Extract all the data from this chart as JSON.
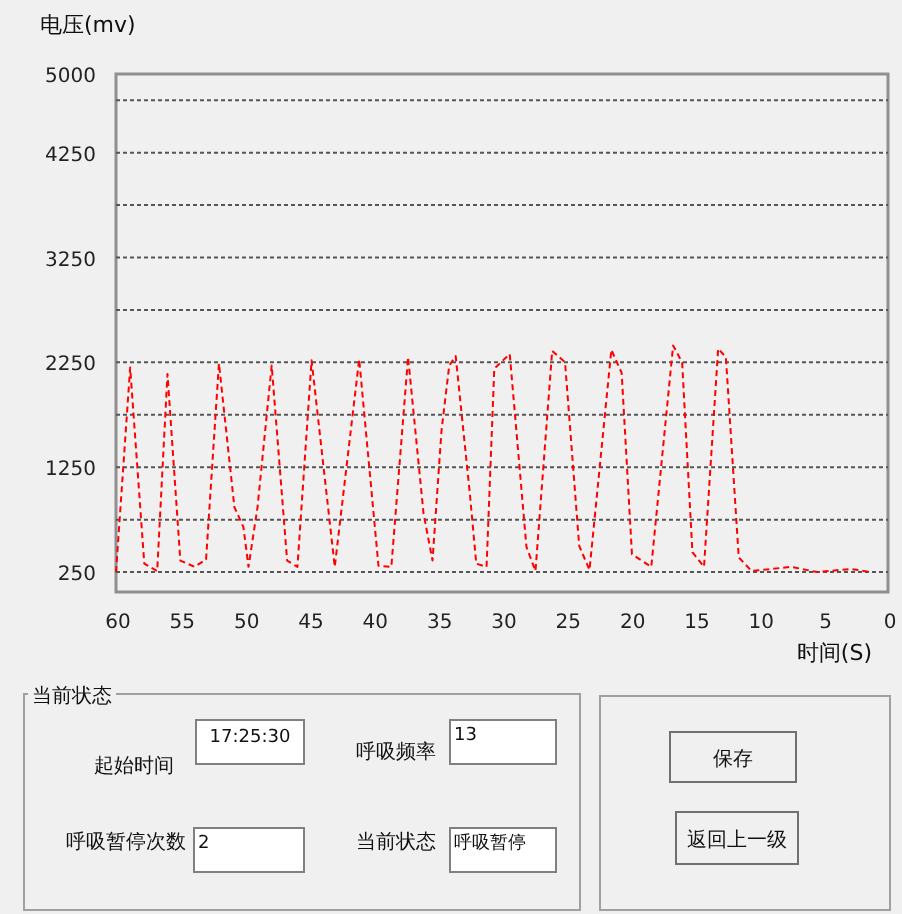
{
  "chart_data": {
    "type": "line",
    "xlabel": "时间(S)",
    "ylabel": "电压(mv)",
    "xlim": [
      60,
      0
    ],
    "ylim": [
      60,
      5000
    ],
    "xticks": [
      60,
      55,
      50,
      45,
      40,
      35,
      30,
      25,
      20,
      15,
      10,
      5,
      0
    ],
    "yticks": [
      250,
      {
        "value": 750,
        "label": null
      },
      1250,
      {
        "value": 1750,
        "label": null
      },
      2250,
      {
        "value": 2750,
        "label": null
      },
      3250,
      {
        "value": 3750,
        "label": null
      },
      4250,
      {
        "value": 4750,
        "label": null
      },
      5000
    ],
    "grid": "y",
    "line_style": "dashed",
    "series": [
      {
        "color": "#ff0000",
        "x": [
          60,
          58.9,
          57.8,
          56.8,
          56.0,
          55.0,
          53.9,
          53.0,
          52.0,
          50.8,
          50.1,
          49.7,
          49.0,
          47.9,
          46.7,
          45.9,
          44.8,
          43.0,
          41.1,
          39.6,
          38.6,
          37.3,
          36.1,
          35.4,
          34.7,
          34.1,
          33.6,
          32.5,
          32.0,
          31.2,
          30.6,
          29.4,
          28.1,
          27.4,
          26.1,
          25.1,
          24.0,
          23.2,
          21.5,
          20.7,
          19.9,
          18.4,
          16.7,
          16.0,
          15.2,
          14.3,
          13.2,
          12.6,
          11.6,
          10.6,
          7.5,
          5.5,
          2.9,
          1.3
        ],
        "values": [
          250,
          2200,
          330,
          260,
          2140,
          360,
          300,
          370,
          2240,
          870,
          680,
          300,
          870,
          2220,
          360,
          300,
          2270,
          300,
          2280,
          310,
          300,
          2300,
          810,
          360,
          1600,
          2220,
          2310,
          1000,
          330,
          300,
          2190,
          2330,
          490,
          260,
          2360,
          2250,
          500,
          270,
          2370,
          2150,
          420,
          300,
          2410,
          2250,
          440,
          300,
          2380,
          2300,
          390,
          260,
          300,
          250,
          280,
          250
        ]
      }
    ],
    "annotations": [
      "当前状态",
      "起始时间",
      "17:25:30",
      "呼吸频率",
      "13",
      "呼吸暂停次数",
      "2",
      "当前状态",
      "呼吸暂停",
      "保存",
      "返回上一级"
    ]
  }
}
